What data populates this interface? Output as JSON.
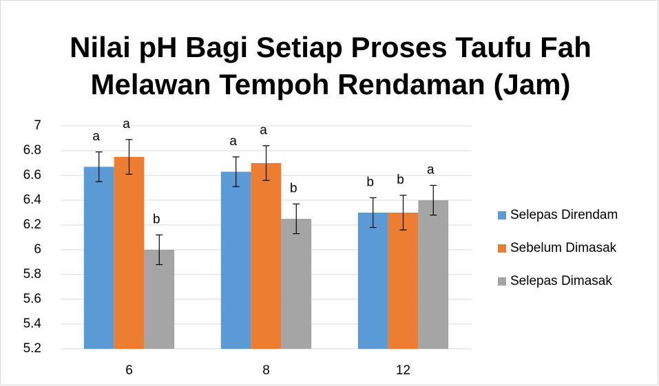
{
  "chart_data": {
    "type": "bar",
    "title": "Nilai pH Bagi Setiap Proses Taufu Fah Melawan Tempoh Rendaman (Jam)",
    "categories": [
      "6",
      "8",
      "12"
    ],
    "series": [
      {
        "name": "Selepas Direndam",
        "color": "#5b9bd5",
        "values": [
          6.67,
          6.63,
          6.3
        ],
        "errors": [
          0.12,
          0.12,
          0.12
        ],
        "letters": [
          "a",
          "a",
          "b"
        ]
      },
      {
        "name": "Sebelum Dimasak",
        "color": "#ed7d31",
        "values": [
          6.75,
          6.7,
          6.3
        ],
        "errors": [
          0.14,
          0.14,
          0.14
        ],
        "letters": [
          "a",
          "a",
          "b"
        ]
      },
      {
        "name": "Selepas Dimasak",
        "color": "#a5a5a5",
        "values": [
          6.0,
          6.25,
          6.4
        ],
        "errors": [
          0.12,
          0.12,
          0.12
        ],
        "letters": [
          "b",
          "b",
          "a"
        ]
      }
    ],
    "ylim": [
      5.2,
      7
    ],
    "yticks": [
      5.2,
      5.4,
      5.6,
      5.8,
      6,
      6.2,
      6.4,
      6.6,
      6.8,
      7
    ],
    "grid": true,
    "legend": "right"
  }
}
